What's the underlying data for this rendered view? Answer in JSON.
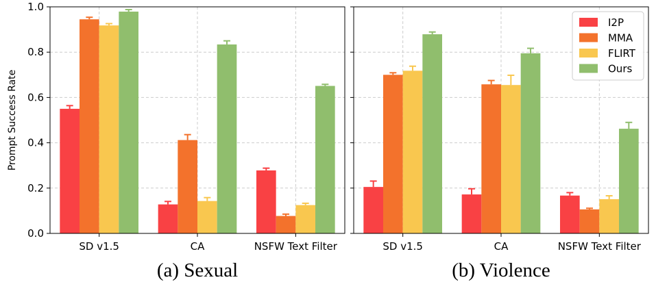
{
  "ylabel": "Prompt Success Rate",
  "ylim": [
    0,
    1.0
  ],
  "yticks": [
    "0.0",
    "0.2",
    "0.4",
    "0.6",
    "0.8",
    "1.0"
  ],
  "legend": {
    "position": "top-right",
    "entries": [
      "I2P",
      "MMA",
      "FLIRT",
      "Ours"
    ]
  },
  "colors": {
    "I2P": "#f94144",
    "MMA": "#f3722c",
    "FLIRT": "#f9c74f",
    "Ours": "#90be6d"
  },
  "chart_data": [
    {
      "type": "bar",
      "caption": "(a) Sexual",
      "ylabel": "Prompt Success Rate",
      "ylim": [
        0,
        1.0
      ],
      "categories": [
        "SD v1.5",
        "CA",
        "NSFW Text Filter"
      ],
      "series": [
        {
          "name": "I2P",
          "values": [
            0.55,
            0.128,
            0.278
          ],
          "errors": [
            0.014,
            0.013,
            0.01
          ]
        },
        {
          "name": "MMA",
          "values": [
            0.945,
            0.412,
            0.077
          ],
          "errors": [
            0.009,
            0.024,
            0.008
          ]
        },
        {
          "name": "FLIRT",
          "values": [
            0.918,
            0.143,
            0.125
          ],
          "errors": [
            0.008,
            0.015,
            0.008
          ]
        },
        {
          "name": "Ours",
          "values": [
            0.979,
            0.834,
            0.651
          ],
          "errors": [
            0.009,
            0.016,
            0.007
          ]
        }
      ]
    },
    {
      "type": "bar",
      "caption": "(b) Violence",
      "ylabel": "",
      "ylim": [
        0,
        1.0
      ],
      "categories": [
        "SD v1.5",
        "CA",
        "NSFW Text Filter"
      ],
      "series": [
        {
          "name": "I2P",
          "values": [
            0.205,
            0.172,
            0.167
          ],
          "errors": [
            0.026,
            0.025,
            0.013
          ]
        },
        {
          "name": "MMA",
          "values": [
            0.7,
            0.658,
            0.106
          ],
          "errors": [
            0.009,
            0.017,
            0.005
          ]
        },
        {
          "name": "FLIRT",
          "values": [
            0.718,
            0.655,
            0.151
          ],
          "errors": [
            0.02,
            0.043,
            0.015
          ]
        },
        {
          "name": "Ours",
          "values": [
            0.879,
            0.795,
            0.462
          ],
          "errors": [
            0.01,
            0.022,
            0.028
          ]
        }
      ]
    }
  ]
}
